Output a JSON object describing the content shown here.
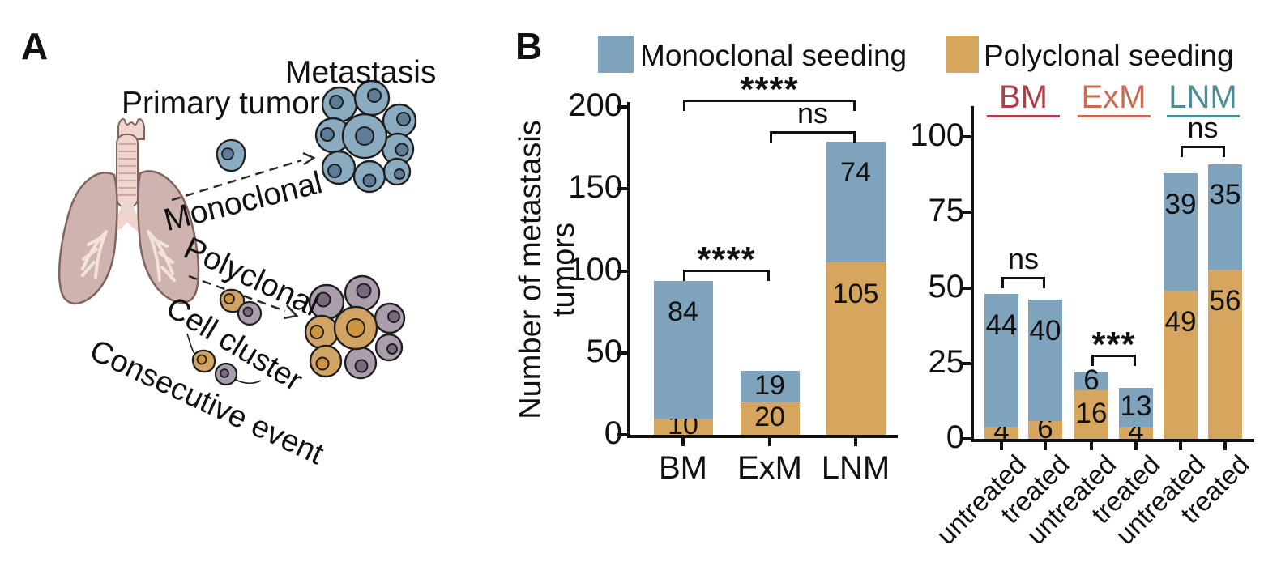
{
  "figure": {
    "panel_a_label": "A",
    "panel_b_label": "B"
  },
  "panel_a": {
    "primary_tumor": "Primary tumor",
    "metastasis": "Metastasis",
    "monoclonal": "Monoclonal",
    "polyclonal": "Polyclonal",
    "cell_cluster": "Cell cluster",
    "consecutive_event": "Consecutive event"
  },
  "legend": {
    "items": [
      {
        "label": "Monoclonal seeding",
        "color": "#7FA3BC"
      },
      {
        "label": "Polyclonal seeding",
        "color": "#D6A65E"
      }
    ]
  },
  "colors": {
    "monoclonal": "#7FA3BC",
    "polyclonal": "#D6A65E",
    "axis": "#111111",
    "bm": "#B23B48",
    "exm": "#CB6A52",
    "lnm": "#4E8C96"
  },
  "chart_data": [
    {
      "type": "bar",
      "stacked": true,
      "title": "",
      "ylabel": "Number of metastasis tumors",
      "ylabel_lines": [
        "Number of metastasis",
        "tumors"
      ],
      "xlabel": "",
      "ylim": [
        0,
        200
      ],
      "yticks": [
        0,
        50,
        100,
        150,
        200
      ],
      "grid": false,
      "legend_position": "top",
      "categories": [
        "BM",
        "ExM",
        "LNM"
      ],
      "series": [
        {
          "name": "Polyclonal seeding",
          "color_key": "polyclonal",
          "values": [
            10,
            20,
            105
          ]
        },
        {
          "name": "Monoclonal seeding",
          "color_key": "monoclonal",
          "values": [
            84,
            19,
            74
          ]
        }
      ],
      "totals": [
        94,
        39,
        179
      ],
      "significance": [
        {
          "a": 0,
          "b": 2,
          "label": "****"
        },
        {
          "a": 1,
          "b": 2,
          "label": "ns"
        },
        {
          "a": 0,
          "b": 1,
          "label": "****"
        }
      ]
    },
    {
      "type": "bar",
      "stacked": true,
      "title": "",
      "ylabel": "",
      "xlabel": "",
      "ylim": [
        0,
        100
      ],
      "yticks": [
        0,
        25,
        50,
        75,
        100
      ],
      "grid": false,
      "categories": [
        "untreated",
        "treated",
        "untreated",
        "treated",
        "untreated",
        "treated"
      ],
      "groups": [
        {
          "label": "BM",
          "color_key": "bm"
        },
        {
          "label": "ExM",
          "color_key": "exm"
        },
        {
          "label": "LNM",
          "color_key": "lnm"
        }
      ],
      "series": [
        {
          "name": "Polyclonal seeding",
          "color_key": "polyclonal",
          "values": [
            4,
            6,
            16,
            4,
            49,
            56
          ]
        },
        {
          "name": "Monoclonal seeding",
          "color_key": "monoclonal",
          "values": [
            44,
            40,
            6,
            13,
            39,
            35
          ]
        }
      ],
      "totals": [
        48,
        46,
        22,
        17,
        88,
        91
      ],
      "significance": [
        {
          "a": 0,
          "b": 1,
          "label": "ns"
        },
        {
          "a": 2,
          "b": 3,
          "label": "***"
        },
        {
          "a": 4,
          "b": 5,
          "label": "ns"
        }
      ]
    }
  ]
}
